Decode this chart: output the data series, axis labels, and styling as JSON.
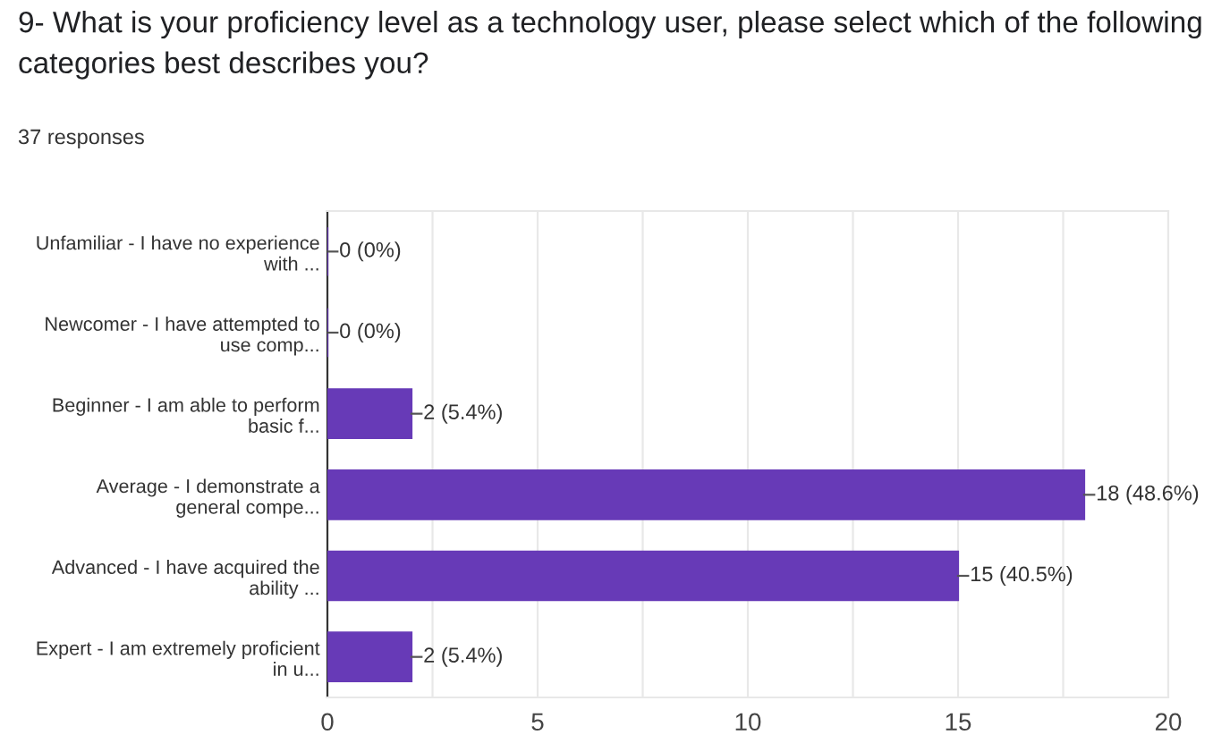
{
  "chart_data": {
    "type": "bar",
    "orientation": "horizontal",
    "title": "9- What is your proficiency level as a technology user, please select which of the following categories best describes you?",
    "subtitle": "37 responses",
    "categories": [
      "Unfamiliar - I have no experience\nwith ...",
      "Newcomer - I have attempted to\nuse comp...",
      "Beginner - I am able to perform\nbasic f...",
      "Average - I demonstrate a\ngeneral compe...",
      "Advanced - I have acquired the\nability ...",
      "Expert - I am extremely proficient\nin u..."
    ],
    "values": [
      0,
      0,
      2,
      18,
      15,
      2
    ],
    "value_labels": [
      "0 (0%)",
      "0 (0%)",
      "2 (5.4%)",
      "18 (48.6%)",
      "15 (40.5%)",
      "2 (5.4%)"
    ],
    "color": "#673ab7",
    "xlim": [
      0,
      20
    ],
    "xticks": [
      0,
      {
        "value": 2.5,
        "label": null
      },
      5,
      {
        "value": 7.5,
        "label": null
      },
      10,
      {
        "value": 12.5,
        "label": null
      },
      15,
      {
        "value": 17.5,
        "label": null
      },
      20
    ],
    "grid": "x"
  }
}
